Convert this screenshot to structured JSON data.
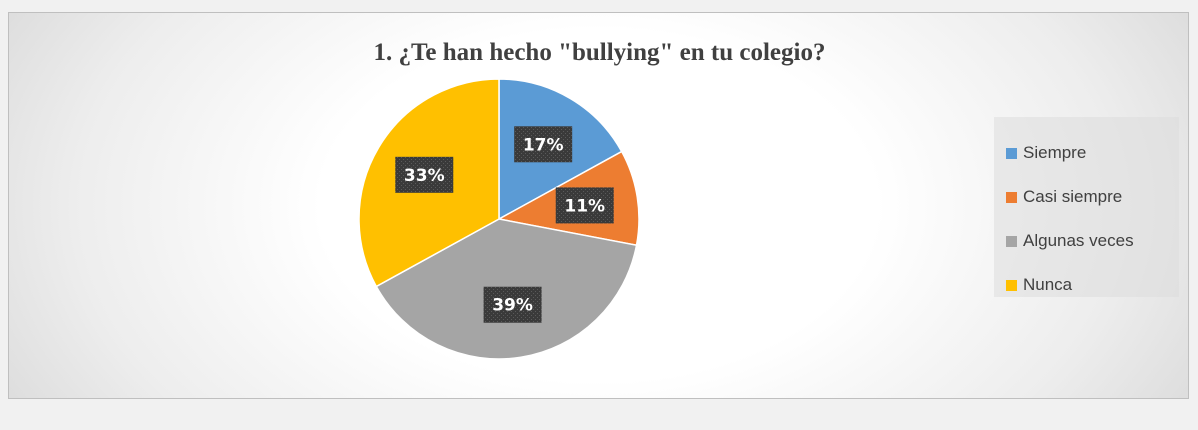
{
  "chart_data": {
    "type": "pie",
    "title": "1. ¿Te han hecho \"bullying\" en tu colegio?",
    "categories": [
      "Siempre",
      "Casi siempre",
      "Algunas veces",
      "Nunca"
    ],
    "values": [
      17,
      11,
      39,
      33
    ],
    "data_labels": [
      "17%",
      "11%",
      "39%",
      "33%"
    ],
    "colors": [
      "#5b9bd5",
      "#ed7d31",
      "#a5a5a5",
      "#ffc000"
    ],
    "legend_position": "right"
  }
}
